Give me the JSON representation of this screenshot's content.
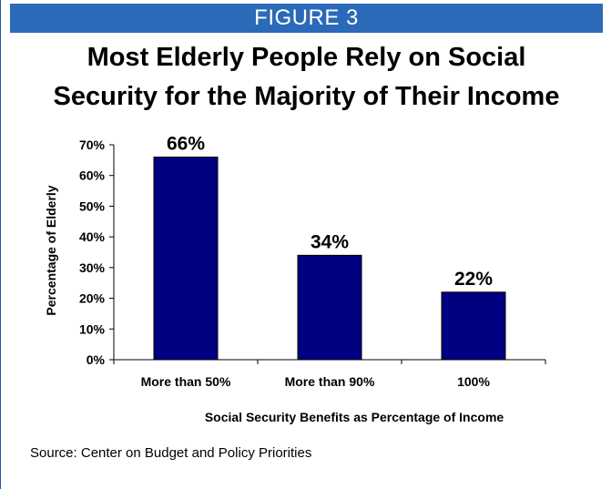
{
  "header": {
    "figure_label": "FIGURE 3"
  },
  "title_lines": [
    "Most Elderly People Rely on Social",
    "Security for the Majority of Their Income"
  ],
  "source": "Source: Center on Budget and Policy Priorities",
  "colors": {
    "banner": "#2a6ab8",
    "bar": "#000080",
    "frame": "#1f5aa0"
  },
  "chart_data": {
    "type": "bar",
    "categories": [
      "More than 50%",
      "More than 90%",
      "100%"
    ],
    "values": [
      66,
      34,
      22
    ],
    "value_labels": [
      "66%",
      "34%",
      "22%"
    ],
    "xlabel": "Social Security Benefits as Percentage of Income",
    "ylabel": "Percentage of Elderly",
    "ylim": [
      0,
      70
    ],
    "yticks": [
      0,
      10,
      20,
      30,
      40,
      50,
      60,
      70
    ],
    "ytick_labels": [
      "0%",
      "10%",
      "20%",
      "30%",
      "40%",
      "50%",
      "60%",
      "70%"
    ],
    "grid": false,
    "legend": "none"
  }
}
